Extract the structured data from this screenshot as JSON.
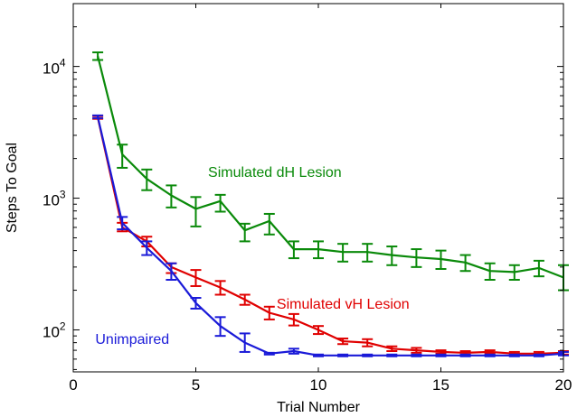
{
  "chart_data": {
    "type": "line",
    "title": "",
    "xlabel": "Trial Number",
    "ylabel": "Steps To Goal",
    "xlim": [
      0,
      20
    ],
    "ylim": [
      48,
      30000
    ],
    "yscale": "log",
    "x_ticks": [
      0,
      5,
      10,
      15,
      20
    ],
    "y_ticks": [
      {
        "value": 100,
        "base": "10",
        "exp": "2"
      },
      {
        "value": 1000,
        "base": "10",
        "exp": "3"
      },
      {
        "value": 10000,
        "base": "10",
        "exp": "4"
      }
    ],
    "grid": false,
    "x": [
      1,
      2,
      3,
      4,
      5,
      6,
      7,
      8,
      9,
      10,
      11,
      12,
      13,
      14,
      15,
      16,
      17,
      18,
      19,
      20
    ],
    "series": [
      {
        "name": "Simulated dH Lesion",
        "color": "#0a8a0a",
        "values": [
          12000,
          2150,
          1400,
          1050,
          830,
          950,
          570,
          670,
          410,
          410,
          390,
          390,
          370,
          355,
          345,
          325,
          280,
          275,
          295,
          250
        ],
        "err_low": [
          11200,
          1700,
          1150,
          850,
          610,
          790,
          470,
          530,
          350,
          350,
          330,
          330,
          310,
          300,
          290,
          280,
          240,
          240,
          255,
          200
        ],
        "err_high": [
          12800,
          2550,
          1650,
          1250,
          1020,
          1060,
          640,
          760,
          470,
          470,
          450,
          450,
          430,
          410,
          400,
          370,
          320,
          310,
          335,
          310
        ],
        "label": {
          "text": "Simulated dH Lesion",
          "x": 5.5,
          "y": 1450
        }
      },
      {
        "name": "Simulated vH Lesion",
        "color": "#e00000",
        "values": [
          4100,
          600,
          470,
          300,
          250,
          210,
          170,
          135,
          120,
          100,
          82,
          80,
          72,
          70,
          68,
          67,
          68,
          66,
          66,
          67
        ],
        "err_low": [
          4000,
          560,
          430,
          270,
          215,
          185,
          155,
          120,
          108,
          93,
          78,
          75,
          69,
          67,
          66,
          65,
          66,
          64,
          64,
          65
        ],
        "err_high": [
          4200,
          650,
          510,
          320,
          285,
          235,
          185,
          150,
          132,
          107,
          86,
          85,
          75,
          73,
          70,
          69,
          70,
          68,
          68,
          69
        ],
        "label": {
          "text": "Simulated vH Lesion",
          "x": 8.3,
          "y": 145
        }
      },
      {
        "name": "Unimpaired",
        "color": "#1a1ad8",
        "values": [
          4150,
          650,
          420,
          280,
          160,
          107,
          80,
          66,
          69,
          64,
          64,
          64,
          64,
          64,
          64,
          64,
          64,
          64,
          64,
          66
        ],
        "err_low": [
          4050,
          580,
          370,
          240,
          145,
          90,
          68,
          65,
          66,
          63,
          63,
          63,
          63,
          63,
          63,
          63,
          63,
          63,
          63,
          64
        ],
        "err_high": [
          4250,
          720,
          470,
          320,
          175,
          125,
          94,
          67,
          72,
          65,
          65,
          65,
          65,
          65,
          65,
          65,
          65,
          65,
          65,
          68
        ],
        "label": {
          "text": "Unimpaired",
          "x": 0.9,
          "y": 78
        }
      }
    ]
  }
}
